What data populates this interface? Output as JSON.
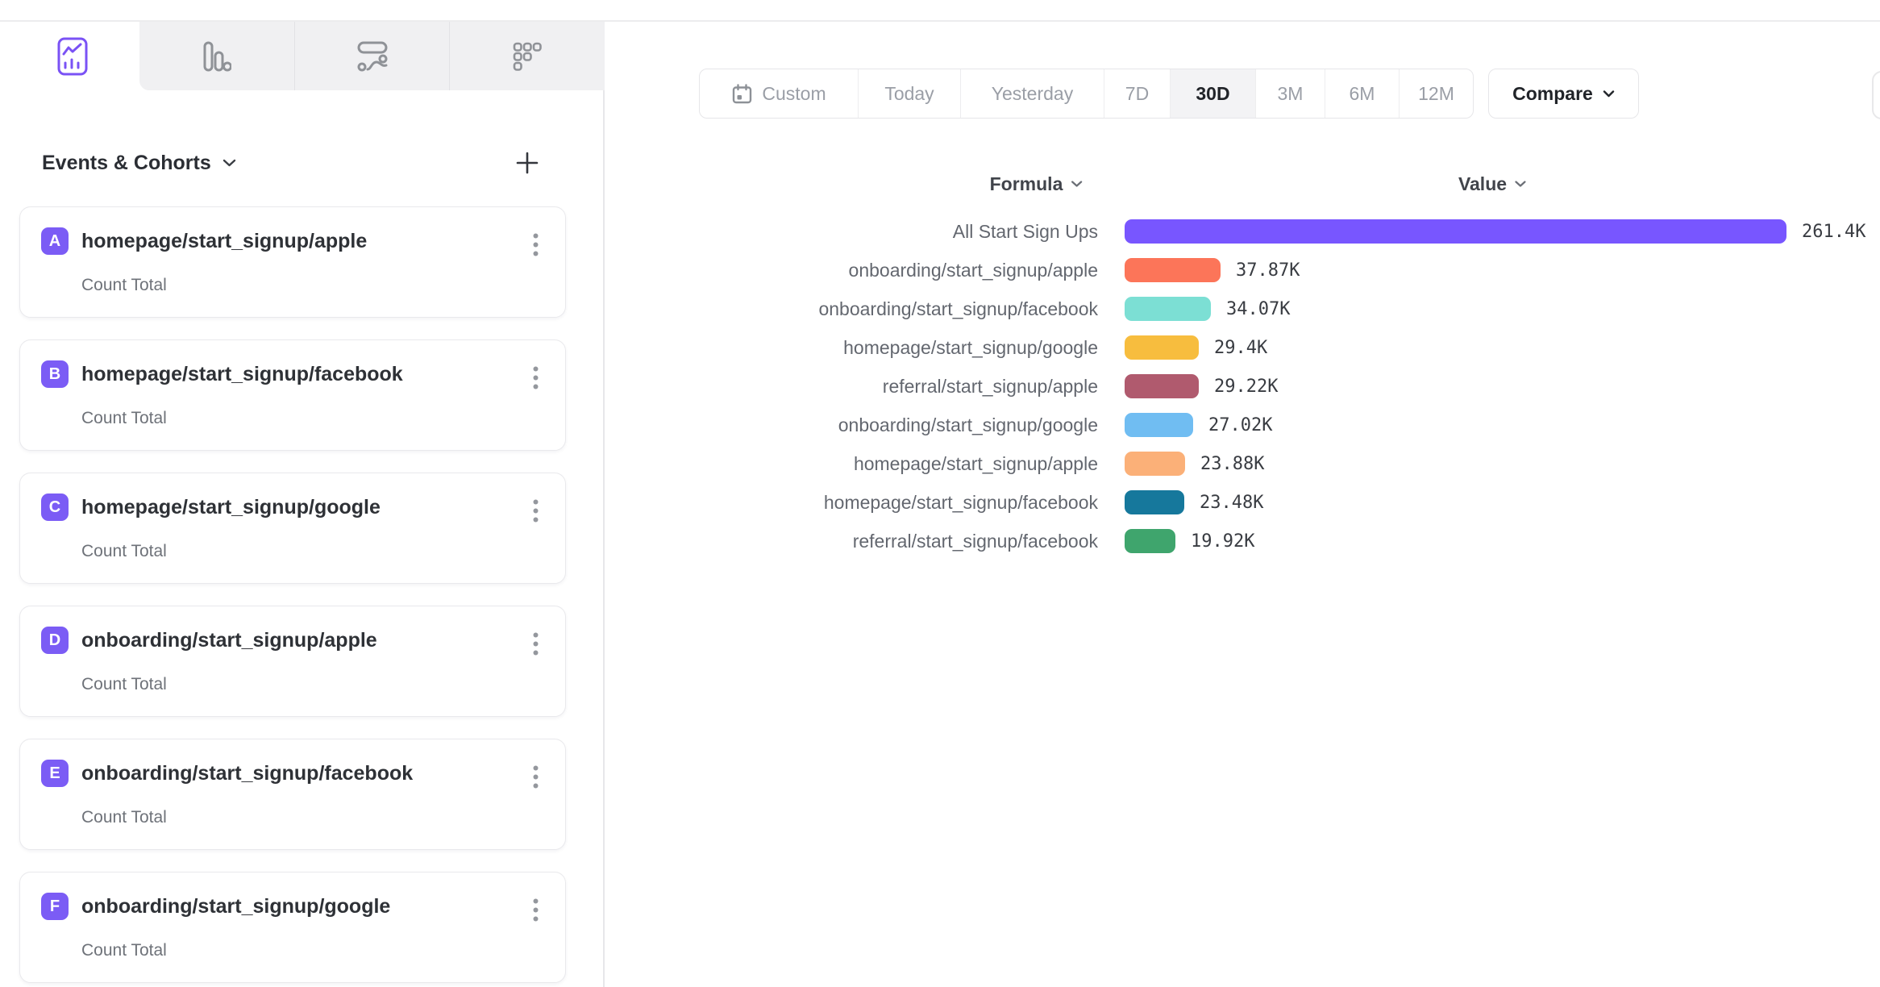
{
  "toolbar": {
    "tabs": [
      {
        "id": "insights-line",
        "icon": "line-chart-icon",
        "selected": true
      },
      {
        "id": "bar",
        "icon": "bar-chart-icon",
        "selected": false
      },
      {
        "id": "flow",
        "icon": "flow-chart-icon",
        "selected": false
      },
      {
        "id": "breakdown",
        "icon": "dot-grid-icon",
        "selected": false
      }
    ],
    "accent_color": "#7a52f5"
  },
  "sidebar": {
    "header_title": "Events & Cohorts",
    "add_button": "+",
    "badge_color": "#7b5cf5",
    "events": [
      {
        "letter": "A",
        "name": "homepage/start_signup/apple",
        "measure": "Count Total"
      },
      {
        "letter": "B",
        "name": "homepage/start_signup/facebook",
        "measure": "Count Total"
      },
      {
        "letter": "C",
        "name": "homepage/start_signup/google",
        "measure": "Count Total"
      },
      {
        "letter": "D",
        "name": "onboarding/start_signup/apple",
        "measure": "Count Total"
      },
      {
        "letter": "E",
        "name": "onboarding/start_signup/facebook",
        "measure": "Count Total"
      },
      {
        "letter": "F",
        "name": "onboarding/start_signup/google",
        "measure": "Count Total"
      }
    ]
  },
  "date_range": {
    "options": [
      {
        "label": "Custom",
        "icon": "calendar-icon",
        "selected": false
      },
      {
        "label": "Today",
        "selected": false
      },
      {
        "label": "Yesterday",
        "selected": false
      },
      {
        "label": "7D",
        "selected": false
      },
      {
        "label": "30D",
        "selected": true
      },
      {
        "label": "3M",
        "selected": false
      },
      {
        "label": "6M",
        "selected": false
      },
      {
        "label": "12M",
        "selected": false
      }
    ],
    "compare_label": "Compare"
  },
  "chart_data": {
    "type": "bar",
    "orientation": "horizontal",
    "grid": false,
    "legend_position": "none",
    "column_headers": {
      "formula": "Formula",
      "value": "Value"
    },
    "x_max": 261400,
    "rows": [
      {
        "label": "All Start Sign Ups",
        "value": 261400,
        "display": "261.4K",
        "color": "#7856ff"
      },
      {
        "label": "onboarding/start_signup/apple",
        "value": 37870,
        "display": "37.87K",
        "color": "#fc7559"
      },
      {
        "label": "onboarding/start_signup/facebook",
        "value": 34070,
        "display": "34.07K",
        "color": "#7cdfd4"
      },
      {
        "label": "homepage/start_signup/google",
        "value": 29400,
        "display": "29.4K",
        "color": "#f7bd3e"
      },
      {
        "label": "referral/start_signup/apple",
        "value": 29220,
        "display": "29.22K",
        "color": "#b05a6e"
      },
      {
        "label": "onboarding/start_signup/google",
        "value": 27020,
        "display": "27.02K",
        "color": "#70bdf2"
      },
      {
        "label": "homepage/start_signup/apple",
        "value": 23880,
        "display": "23.88K",
        "color": "#fbb078"
      },
      {
        "label": "homepage/start_signup/facebook",
        "value": 23480,
        "display": "23.48K",
        "color": "#16789c"
      },
      {
        "label": "referral/start_signup/facebook",
        "value": 19920,
        "display": "19.92K",
        "color": "#3fa56d"
      }
    ]
  }
}
